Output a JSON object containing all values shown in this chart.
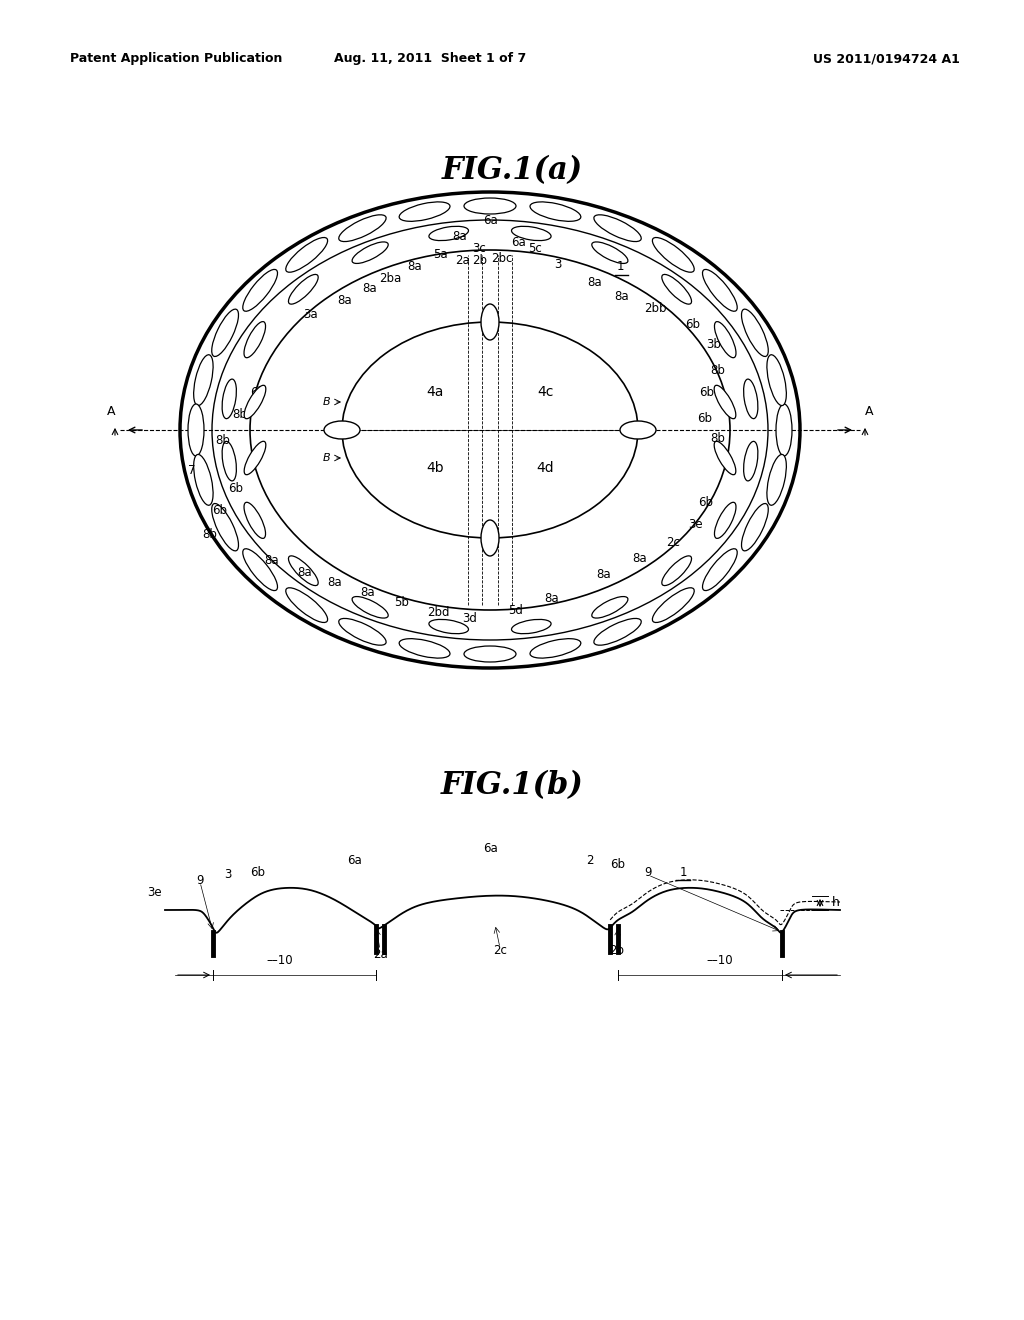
{
  "bg_color": "#ffffff",
  "line_color": "#000000",
  "fig_width": 10.24,
  "fig_height": 13.2,
  "header_left": "Patent Application Publication",
  "header_center": "Aug. 11, 2011  Sheet 1 of 7",
  "header_right": "US 2011/0194724 A1",
  "fig1a_title": "FIG.1(a)",
  "fig1b_title": "FIG.1(b)"
}
